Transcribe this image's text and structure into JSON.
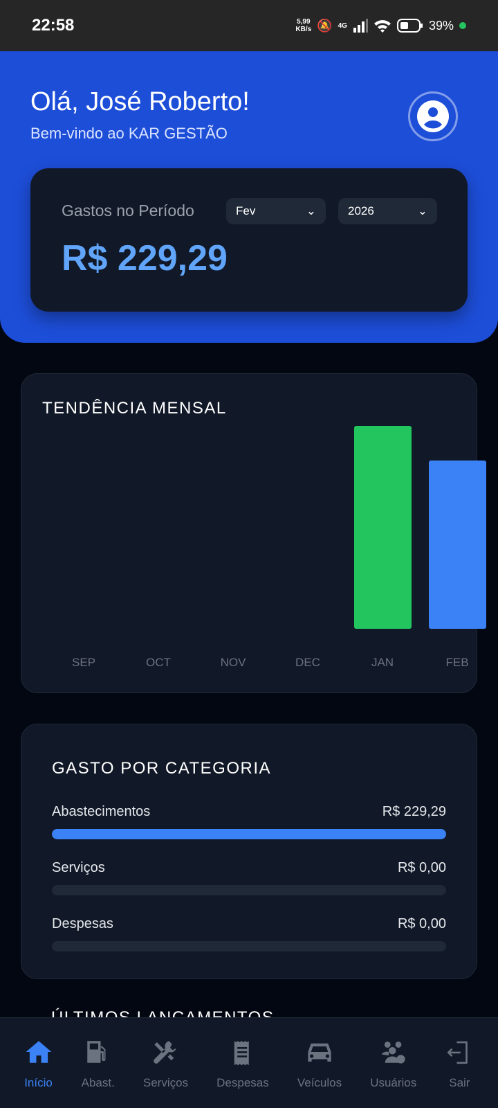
{
  "status_bar": {
    "time": "22:58",
    "net_speed": "5,99",
    "net_unit": "KB/s",
    "network": "4G",
    "battery": "39%"
  },
  "header": {
    "greeting": "Olá, José Roberto!",
    "subtitle": "Bem-vindo ao KAR GESTÃO"
  },
  "period": {
    "label": "Gastos no Período",
    "month": "Fev",
    "year": "2026",
    "total": "R$ 229,29"
  },
  "chart_data": {
    "type": "bar",
    "title": "TENDÊNCIA MENSAL",
    "categories": [
      "SEP",
      "OCT",
      "NOV",
      "DEC",
      "JAN",
      "FEB"
    ],
    "values": [
      0,
      0,
      0,
      0,
      276,
      229.29
    ],
    "colors": [
      "#22c55e",
      "#22c55e",
      "#22c55e",
      "#22c55e",
      "#22c55e",
      "#3b82f6"
    ],
    "grid": false
  },
  "categories": {
    "title": "GASTO POR CATEGORIA",
    "items": [
      {
        "name": "Abastecimentos",
        "value": "R$ 229,29",
        "fraction": 1
      },
      {
        "name": "Serviços",
        "value": "R$ 0,00",
        "fraction": 0
      },
      {
        "name": "Despesas",
        "value": "R$ 0,00",
        "fraction": 0
      }
    ]
  },
  "recent": {
    "title": "ÚLTIMOS LANÇAMENTOS"
  },
  "nav": [
    {
      "label": "Início",
      "icon": "home-icon"
    },
    {
      "label": "Abast.",
      "icon": "fuel-pump-icon"
    },
    {
      "label": "Serviços",
      "icon": "tools-icon"
    },
    {
      "label": "Despesas",
      "icon": "receipt-icon"
    },
    {
      "label": "Veículos",
      "icon": "car-icon"
    },
    {
      "label": "Usuários",
      "icon": "users-gear-icon"
    },
    {
      "label": "Sair",
      "icon": "logout-icon"
    }
  ],
  "colors": {
    "accent": "#3b82f6",
    "header": "#1d4ed8",
    "jan_bar": "#22c55e"
  }
}
